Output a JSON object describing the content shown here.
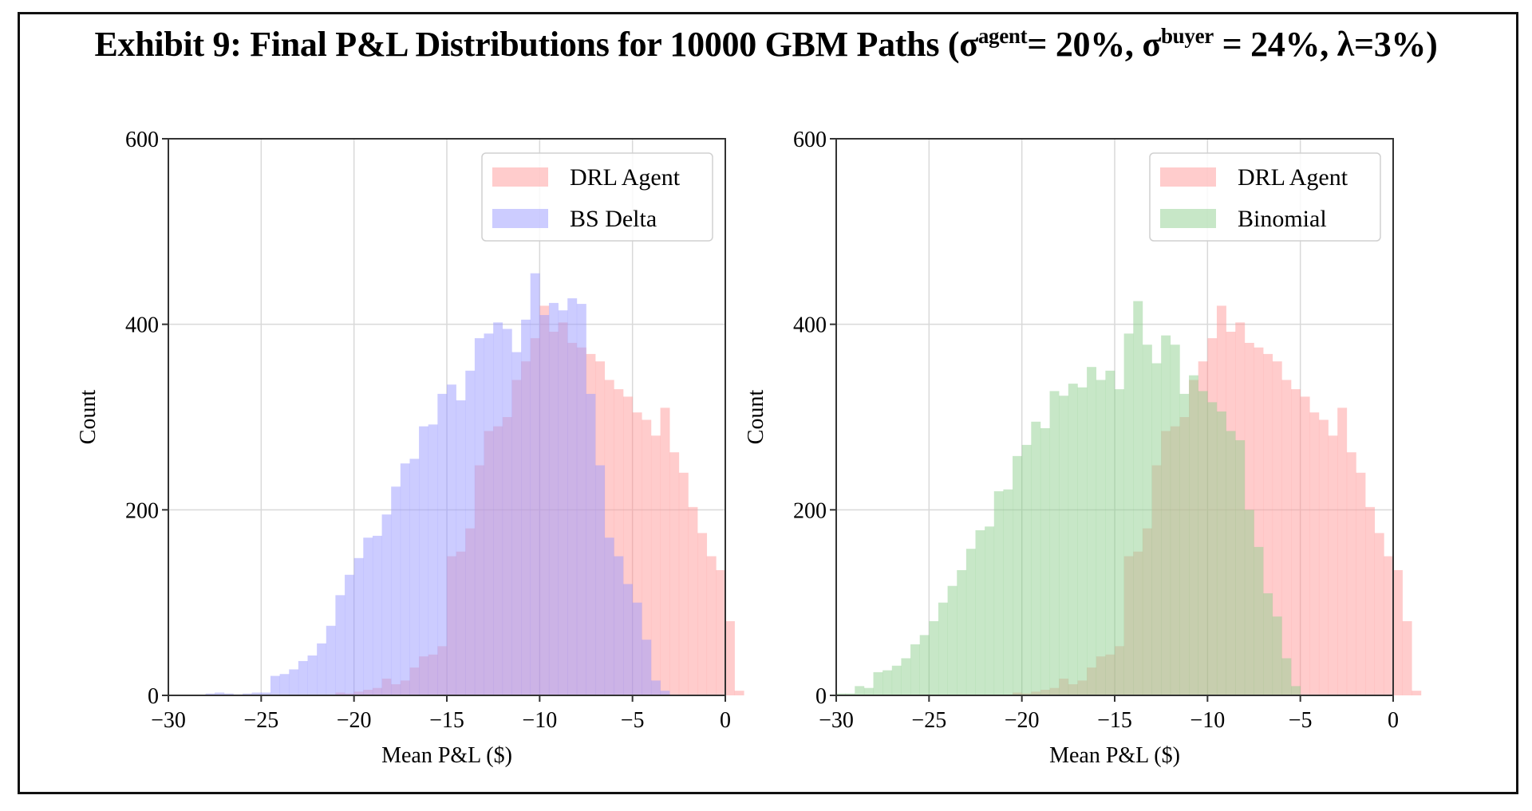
{
  "title": {
    "prefix": "Exhibit 9:  Final P&L Distributions for 10000 GBM Paths (σ",
    "sup1": "agent",
    "mid": "= 20%, σ",
    "sup2": "buyer",
    "suffix": " = 24%, λ=3%)"
  },
  "colors": {
    "drl": "#ff9a9a",
    "bs": "#9a9aff",
    "binomial": "#8fd08f",
    "grid": "#d9d9d9",
    "axis": "#333333"
  },
  "chart_data": [
    {
      "type": "histogram",
      "xlabel": "Mean P&L ($)",
      "ylabel": "Count",
      "xlim": [
        -30,
        0
      ],
      "ylim": [
        0,
        600
      ],
      "xticks": [
        "−30",
        "−25",
        "−20",
        "−15",
        "−10",
        "−5",
        "0"
      ],
      "xtick_values": [
        -30,
        -25,
        -20,
        -15,
        -10,
        -5,
        0
      ],
      "yticks": [
        "0",
        "200",
        "400",
        "600"
      ],
      "ytick_values": [
        0,
        200,
        400,
        600
      ],
      "grid": true,
      "legend_position": "top-right",
      "bin_width": 0.5,
      "bin_start": -28.0,
      "series": [
        {
          "name": "DRL Agent",
          "color_key": "drl",
          "values": [
            0,
            0,
            0,
            0,
            0,
            0,
            0,
            0,
            0,
            0,
            0,
            0,
            0,
            0,
            3,
            2,
            4,
            6,
            8,
            18,
            12,
            16,
            30,
            42,
            44,
            53,
            150,
            155,
            180,
            248,
            285,
            290,
            300,
            340,
            360,
            385,
            420,
            392,
            402,
            380,
            375,
            368,
            360,
            340,
            330,
            322,
            305,
            297,
            280,
            310,
            262,
            240,
            203,
            175,
            150,
            135,
            80,
            5,
            0,
            0,
            0,
            0,
            0,
            0,
            0,
            0
          ],
          "note": "visual estimate"
        },
        {
          "name": "BS Delta",
          "color_key": "bs",
          "values": [
            2,
            3,
            2,
            1,
            2,
            3,
            3,
            21,
            23,
            28,
            37,
            43,
            56,
            75,
            108,
            130,
            148,
            170,
            172,
            195,
            225,
            250,
            255,
            290,
            292,
            325,
            335,
            318,
            350,
            385,
            390,
            402,
            395,
            370,
            405,
            455,
            410,
            423,
            415,
            428,
            422,
            325,
            248,
            170,
            150,
            120,
            100,
            60,
            16,
            5,
            0,
            0,
            0,
            0,
            0,
            0,
            0,
            0,
            0,
            0,
            0,
            0,
            0,
            0,
            0,
            0
          ],
          "note": "visual estimate"
        }
      ]
    },
    {
      "type": "histogram",
      "xlabel": "Mean P&L ($)",
      "ylabel": "Count",
      "xlim": [
        -30,
        0
      ],
      "ylim": [
        0,
        600
      ],
      "xticks": [
        "−30",
        "−25",
        "−20",
        "−15",
        "−10",
        "−5",
        "0"
      ],
      "xtick_values": [
        -30,
        -25,
        -20,
        -15,
        -10,
        -5,
        0
      ],
      "yticks": [
        "0",
        "200",
        "400",
        "600"
      ],
      "ytick_values": [
        0,
        200,
        400,
        600
      ],
      "grid": true,
      "legend_position": "top-right",
      "bin_width": 0.5,
      "bin_start": -30.0,
      "series": [
        {
          "name": "DRL Agent",
          "color_key": "drl",
          "values": [
            0,
            0,
            0,
            0,
            0,
            0,
            0,
            0,
            0,
            0,
            0,
            0,
            0,
            0,
            0,
            0,
            0,
            0,
            0,
            3,
            2,
            4,
            6,
            8,
            18,
            12,
            16,
            30,
            42,
            44,
            53,
            150,
            155,
            180,
            248,
            285,
            290,
            300,
            340,
            360,
            385,
            420,
            392,
            402,
            380,
            375,
            368,
            360,
            340,
            330,
            322,
            305,
            297,
            280,
            310,
            262,
            240,
            203,
            175,
            150,
            135,
            80,
            5,
            0,
            0,
            0
          ],
          "note": "visual estimate"
        },
        {
          "name": "Binomial",
          "color_key": "binomial",
          "values": [
            2,
            2,
            10,
            8,
            25,
            27,
            32,
            40,
            55,
            65,
            80,
            100,
            118,
            135,
            158,
            178,
            182,
            220,
            222,
            258,
            270,
            295,
            288,
            328,
            323,
            336,
            332,
            354,
            340,
            350,
            330,
            390,
            425,
            378,
            358,
            388,
            378,
            325,
            345,
            328,
            316,
            306,
            285,
            275,
            200,
            160,
            110,
            85,
            40,
            10,
            0,
            0,
            0,
            0,
            0,
            0,
            0,
            0,
            0,
            0,
            0
          ],
          "note": "visual estimate"
        }
      ]
    }
  ]
}
